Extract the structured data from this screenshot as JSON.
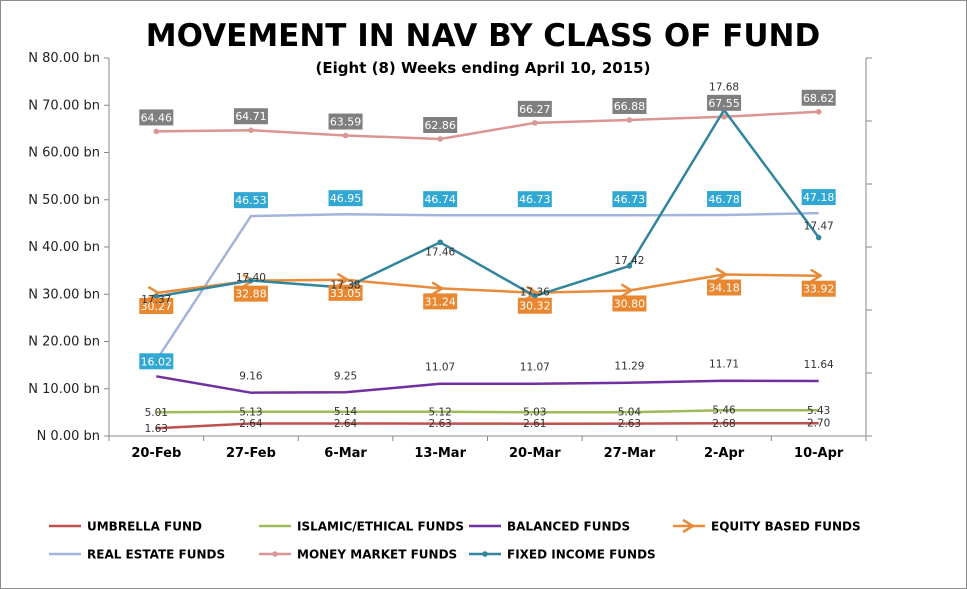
{
  "chart_data": {
    "type": "line",
    "title": "MOVEMENT IN NAV BY CLASS OF FUND",
    "subtitle": "(Eight (8) Weeks ending April 10, 2015)",
    "categories": [
      "20-Feb",
      "27-Feb",
      "6-Mar",
      "13-Mar",
      "20-Mar",
      "27-Mar",
      "2-Apr",
      "10-Apr"
    ],
    "y_ticks": [
      "N 0.00 bn",
      "N 10.00 bn",
      "N 20.00 bn",
      "N 30.00 bn",
      "N 40.00 bn",
      "N 50.00 bn",
      "N 60.00 bn",
      "N 70.00 bn",
      "N 80.00 bn"
    ],
    "ylim": [
      0,
      80
    ],
    "grid": false,
    "legend_position": "bottom",
    "series": [
      {
        "name": "UMBRELLA FUND",
        "color": "#c0504d",
        "marker": "none",
        "label_style": "plain",
        "values": [
          1.63,
          2.64,
          2.64,
          2.63,
          2.61,
          2.63,
          2.68,
          2.7
        ],
        "labels": [
          "1.63",
          "2.64",
          "2.64",
          "2.63",
          "2.61",
          "2.63",
          "2.68",
          "2.70"
        ]
      },
      {
        "name": "ISLAMIC/ETHICAL FUNDS",
        "color": "#9bbb59",
        "marker": "none",
        "label_style": "plain",
        "values": [
          5.01,
          5.13,
          5.14,
          5.12,
          5.03,
          5.04,
          5.46,
          5.43
        ],
        "labels": [
          "5.01",
          "5.13",
          "5.14",
          "5.12",
          "5.03",
          "5.04",
          "5.46",
          "5.43"
        ]
      },
      {
        "name": "BALANCED FUNDS",
        "color": "#7030a0",
        "marker": "none",
        "label_style": "plain",
        "values": [
          12.64,
          9.16,
          9.25,
          11.07,
          11.07,
          11.29,
          11.71,
          11.64
        ],
        "labels": [
          "12.64",
          "9.16",
          "9.25",
          "11.07",
          "11.07",
          "11.29",
          "11.71",
          "11.64"
        ]
      },
      {
        "name": "EQUITY BASED FUNDS",
        "color": "#e88b3a",
        "marker": "arrow",
        "label_style": "box",
        "values": [
          30.27,
          32.88,
          33.05,
          31.24,
          30.32,
          30.8,
          34.18,
          33.92
        ],
        "labels": [
          "30.27",
          "32.88",
          "33.05",
          "31.24",
          "30.32",
          "30.80",
          "34.18",
          "33.92"
        ]
      },
      {
        "name": "REAL ESTATE FUNDS",
        "color": "#a3b4dc",
        "marker": "none",
        "label_style": "box",
        "values": [
          16.02,
          46.53,
          46.95,
          46.74,
          46.73,
          46.73,
          46.78,
          47.18
        ],
        "labels": [
          "16.02",
          "46.53",
          "46.95",
          "46.74",
          "46.73",
          "46.73",
          "46.78",
          "47.18"
        ]
      },
      {
        "name": "MONEY MARKET FUNDS",
        "color": "#d99694",
        "marker": "dot",
        "label_style": "box-gray",
        "values": [
          64.46,
          64.71,
          63.59,
          62.86,
          66.27,
          66.88,
          67.55,
          68.62
        ],
        "labels": [
          "64.46",
          "64.71",
          "63.59",
          "62.86",
          "66.27",
          "66.88",
          "67.55",
          "68.62"
        ]
      },
      {
        "name": "FIXED INCOME FUNDS",
        "color": "#31859c",
        "marker": "dot",
        "label_style": "plain",
        "values": [
          17.37,
          17.4,
          17.38,
          17.46,
          17.36,
          17.42,
          17.68,
          17.47
        ],
        "plot_values": [
          29.5,
          32.9,
          31.4,
          41.0,
          29.6,
          36.0,
          69.0,
          42.0
        ],
        "labels": [
          "17.37",
          "17.40",
          "17.38",
          "17.46",
          "17.36",
          "17.42",
          "17.68",
          "17.47"
        ]
      }
    ],
    "legend_order": [
      "UMBRELLA FUND",
      "ISLAMIC/ETHICAL FUNDS",
      "BALANCED FUNDS",
      "EQUITY BASED FUNDS",
      "REAL ESTATE FUNDS",
      "MONEY MARKET FUNDS",
      "FIXED INCOME FUNDS"
    ]
  }
}
